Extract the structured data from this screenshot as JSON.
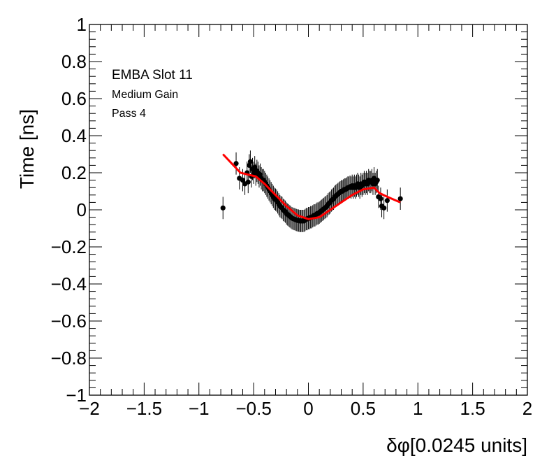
{
  "chart_data": {
    "type": "scatter",
    "xlabel": "δφ[0.0245 units]",
    "ylabel": "Time [ns]",
    "xlim": [
      -2,
      2
    ],
    "ylim": [
      -1,
      1
    ],
    "x_ticks": [
      -2,
      -1.5,
      -1,
      -0.5,
      0,
      0.5,
      1,
      1.5,
      2
    ],
    "x_tick_labels": [
      "−2",
      "−1.5",
      "−1",
      "−0.5",
      "0",
      "0.5",
      "1",
      "1.5",
      "2"
    ],
    "y_ticks": [
      -1,
      -0.8,
      -0.6,
      -0.4,
      -0.2,
      0,
      0.2,
      0.4,
      0.6,
      0.8,
      1
    ],
    "y_tick_labels": [
      "−1",
      "−0.8",
      "−0.6",
      "−0.4",
      "−0.2",
      "0",
      "0.2",
      "0.4",
      "0.6",
      "0.8",
      "1"
    ],
    "annotations": [
      "EMBA Slot 11",
      "Medium Gain",
      "Pass 4"
    ],
    "grid": false,
    "colors": {
      "points": "#000000",
      "fit": "#ff0000"
    },
    "series": [
      {
        "kind": "points-with-error-bars",
        "x": [
          -0.78,
          -0.66,
          -0.63,
          -0.6,
          -0.58,
          -0.56,
          -0.55,
          -0.54,
          -0.53,
          -0.52,
          -0.51,
          -0.5,
          -0.49,
          -0.48,
          -0.47,
          -0.46,
          -0.45,
          -0.44,
          -0.43,
          -0.42,
          -0.41,
          -0.4,
          -0.39,
          -0.38,
          -0.37,
          -0.36,
          -0.35,
          -0.34,
          -0.33,
          -0.32,
          -0.31,
          -0.3,
          -0.29,
          -0.28,
          -0.27,
          -0.26,
          -0.25,
          -0.24,
          -0.23,
          -0.22,
          -0.21,
          -0.2,
          -0.19,
          -0.18,
          -0.17,
          -0.16,
          -0.15,
          -0.14,
          -0.13,
          -0.12,
          -0.11,
          -0.1,
          -0.09,
          -0.08,
          -0.07,
          -0.06,
          -0.05,
          -0.04,
          -0.03,
          -0.02,
          -0.01,
          0.0,
          0.01,
          0.02,
          0.03,
          0.04,
          0.05,
          0.06,
          0.07,
          0.08,
          0.09,
          0.1,
          0.11,
          0.12,
          0.13,
          0.14,
          0.15,
          0.16,
          0.17,
          0.18,
          0.19,
          0.2,
          0.21,
          0.22,
          0.23,
          0.24,
          0.25,
          0.26,
          0.27,
          0.28,
          0.29,
          0.3,
          0.31,
          0.32,
          0.33,
          0.34,
          0.35,
          0.36,
          0.37,
          0.38,
          0.39,
          0.4,
          0.41,
          0.42,
          0.43,
          0.44,
          0.45,
          0.46,
          0.47,
          0.48,
          0.49,
          0.5,
          0.51,
          0.52,
          0.53,
          0.54,
          0.55,
          0.56,
          0.57,
          0.58,
          0.59,
          0.6,
          0.61,
          0.62,
          0.63,
          0.64,
          0.66,
          0.67,
          0.69,
          0.72,
          0.84
        ],
        "y": [
          0.01,
          0.25,
          0.17,
          0.16,
          0.14,
          0.2,
          0.15,
          0.24,
          0.26,
          0.18,
          0.22,
          0.2,
          0.23,
          0.19,
          0.21,
          0.2,
          0.18,
          0.19,
          0.17,
          0.16,
          0.16,
          0.15,
          0.14,
          0.13,
          0.12,
          0.11,
          0.1,
          0.09,
          0.08,
          0.07,
          0.06,
          0.055,
          0.05,
          0.04,
          0.03,
          0.02,
          0.015,
          0.01,
          0.0,
          -0.005,
          -0.01,
          -0.02,
          -0.025,
          -0.03,
          -0.035,
          -0.04,
          -0.045,
          -0.048,
          -0.05,
          -0.052,
          -0.055,
          -0.057,
          -0.058,
          -0.06,
          -0.06,
          -0.06,
          -0.06,
          -0.06,
          -0.055,
          -0.05,
          -0.05,
          -0.045,
          -0.045,
          -0.04,
          -0.04,
          -0.035,
          -0.03,
          -0.03,
          -0.025,
          -0.02,
          -0.02,
          -0.015,
          -0.01,
          -0.005,
          0.0,
          0.005,
          0.01,
          0.015,
          0.02,
          0.03,
          0.035,
          0.04,
          0.05,
          0.055,
          0.06,
          0.07,
          0.075,
          0.08,
          0.085,
          0.09,
          0.095,
          0.1,
          0.1,
          0.105,
          0.11,
          0.11,
          0.115,
          0.12,
          0.12,
          0.125,
          0.12,
          0.13,
          0.12,
          0.13,
          0.12,
          0.13,
          0.14,
          0.13,
          0.12,
          0.14,
          0.13,
          0.14,
          0.15,
          0.14,
          0.15,
          0.14,
          0.16,
          0.15,
          0.15,
          0.16,
          0.14,
          0.17,
          0.14,
          0.15,
          0.16,
          0.07,
          0.06,
          0.02,
          0.01,
          0.05,
          0.06
        ],
        "err": [
          0.06,
          0.06,
          0.06,
          0.06,
          0.06,
          0.06,
          0.06,
          0.06,
          0.06,
          0.06,
          0.06,
          0.06,
          0.06,
          0.06,
          0.06,
          0.06,
          0.06,
          0.06,
          0.06,
          0.06,
          0.06,
          0.06,
          0.06,
          0.06,
          0.06,
          0.06,
          0.06,
          0.06,
          0.06,
          0.06,
          0.06,
          0.06,
          0.06,
          0.06,
          0.06,
          0.06,
          0.06,
          0.06,
          0.06,
          0.06,
          0.06,
          0.06,
          0.06,
          0.06,
          0.06,
          0.06,
          0.06,
          0.06,
          0.06,
          0.06,
          0.06,
          0.06,
          0.06,
          0.06,
          0.06,
          0.06,
          0.06,
          0.06,
          0.06,
          0.06,
          0.06,
          0.06,
          0.06,
          0.06,
          0.06,
          0.06,
          0.06,
          0.06,
          0.06,
          0.06,
          0.06,
          0.06,
          0.06,
          0.06,
          0.06,
          0.06,
          0.06,
          0.06,
          0.06,
          0.06,
          0.06,
          0.06,
          0.06,
          0.06,
          0.06,
          0.06,
          0.06,
          0.06,
          0.06,
          0.06,
          0.06,
          0.06,
          0.06,
          0.06,
          0.06,
          0.06,
          0.06,
          0.06,
          0.06,
          0.06,
          0.06,
          0.06,
          0.06,
          0.06,
          0.06,
          0.06,
          0.06,
          0.06,
          0.06,
          0.06,
          0.06,
          0.06,
          0.06,
          0.06,
          0.06,
          0.06,
          0.06,
          0.06,
          0.06,
          0.06,
          0.06,
          0.06,
          0.06,
          0.06,
          0.06,
          0.06,
          0.06,
          0.06,
          0.06,
          0.06,
          0.06
        ]
      },
      {
        "kind": "fit-curve",
        "x": [
          -0.78,
          -0.7,
          -0.62,
          -0.55,
          -0.48,
          -0.4,
          -0.3,
          -0.2,
          -0.1,
          0.0,
          0.1,
          0.2,
          0.3,
          0.4,
          0.5,
          0.6,
          0.65,
          0.72,
          0.78,
          0.84
        ],
        "y": [
          0.3,
          0.25,
          0.2,
          0.19,
          0.18,
          0.14,
          0.08,
          0.02,
          -0.03,
          -0.05,
          -0.04,
          0.0,
          0.04,
          0.08,
          0.11,
          0.12,
          0.09,
          0.07,
          0.055,
          0.04
        ]
      }
    ]
  }
}
